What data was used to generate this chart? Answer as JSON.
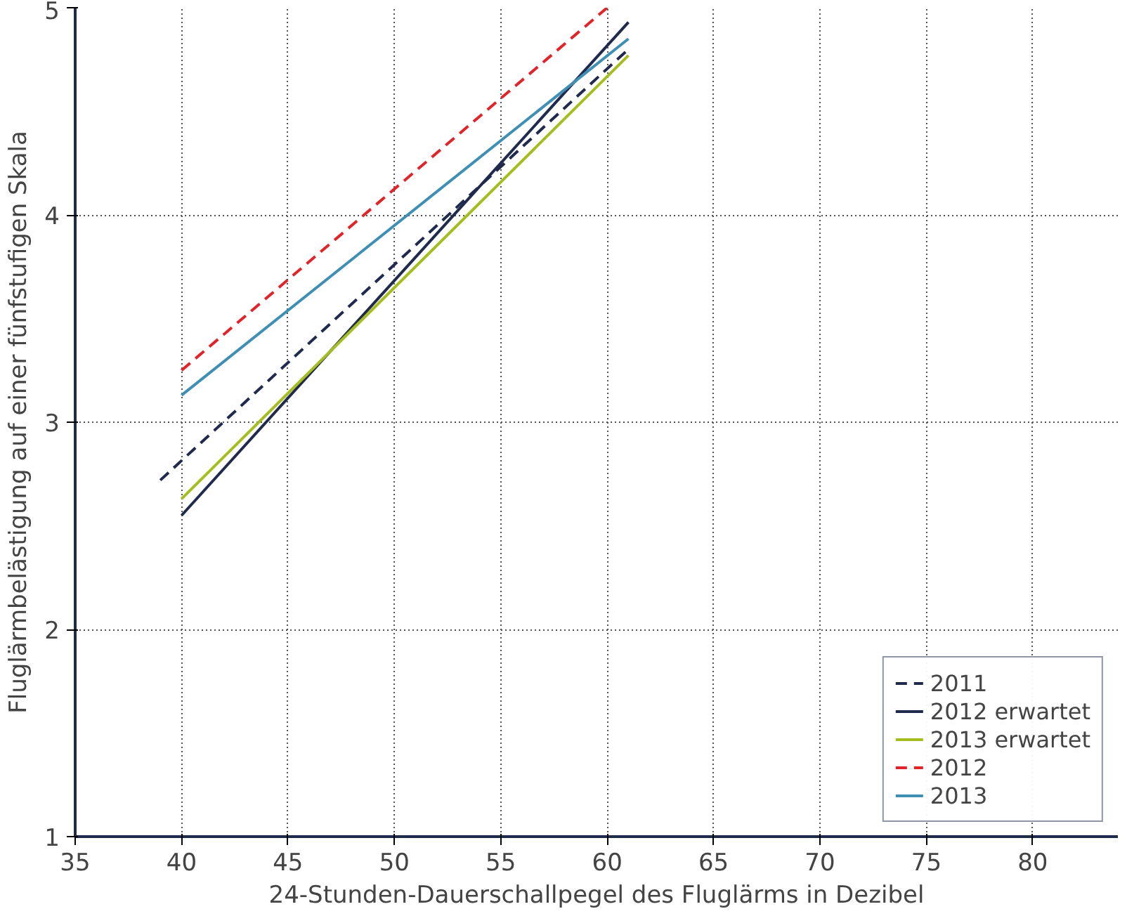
{
  "chart_data": {
    "type": "line",
    "xlabel": "24-Stunden-Dauerschallpegel des Fluglärms in Dezibel",
    "ylabel": "Fluglärmbelästigung auf einer fünfstufigen Skala",
    "series": [
      {
        "name": "2011",
        "color": "#1f2a4d",
        "x": [
          39,
          61
        ],
        "values": [
          2.72,
          4.8
        ],
        "line_style": "dashed"
      },
      {
        "name": "2012 erwartet",
        "color": "#1f2a4d",
        "x": [
          40,
          61
        ],
        "values": [
          2.55,
          4.93
        ],
        "line_style": "solid"
      },
      {
        "name": "2013 erwartet",
        "color": "#a5bd1e",
        "x": [
          40,
          61
        ],
        "values": [
          2.63,
          4.77
        ],
        "line_style": "solid"
      },
      {
        "name": "2012",
        "color": "#e0242a",
        "x": [
          40,
          60
        ],
        "values": [
          3.25,
          5.0
        ],
        "line_style": "dashed"
      },
      {
        "name": "2013",
        "color": "#3f8fb5",
        "x": [
          40,
          61
        ],
        "values": [
          3.13,
          4.85
        ],
        "line_style": "solid"
      }
    ],
    "xlim": [
      35,
      84
    ],
    "ylim": [
      1,
      5
    ],
    "xticks": [
      35,
      40,
      45,
      50,
      55,
      60,
      65,
      70,
      75,
      80
    ],
    "yticks": [
      1,
      2,
      3,
      4,
      5
    ],
    "grid": true,
    "legend": "bottom right"
  }
}
